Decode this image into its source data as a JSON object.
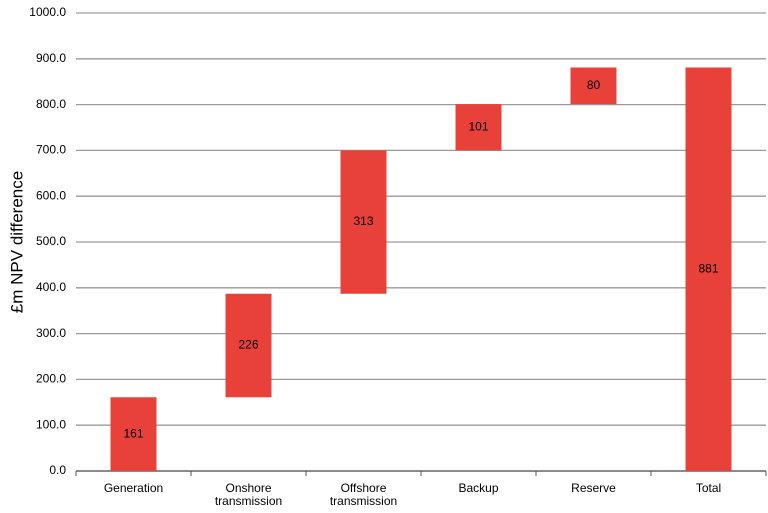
{
  "chart_data": {
    "type": "waterfall",
    "y_label": "£m NPV difference",
    "categories": [
      "Generation",
      "Onshore transmission",
      "Offshore transmission",
      "Backup",
      "Reserve",
      "Total"
    ],
    "values": [
      161,
      226,
      313,
      101,
      80,
      881
    ],
    "color": "#e8413a",
    "ylim": [
      0,
      1000
    ],
    "yticks": [
      {
        "value": 0,
        "label": "0.0"
      },
      {
        "value": 100,
        "label": "100.0"
      },
      {
        "value": 200,
        "label": "200.0"
      },
      {
        "value": 300,
        "label": "300.0"
      },
      {
        "value": 400,
        "label": "400.0"
      },
      {
        "value": 500,
        "label": "500.0"
      },
      {
        "value": 600,
        "label": "600.0"
      },
      {
        "value": 700,
        "label": "700.0"
      },
      {
        "value": 800,
        "label": "800.0"
      },
      {
        "value": 900,
        "label": "900.0"
      },
      {
        "value": 1000,
        "label": "1000.0"
      }
    ],
    "grid": true
  }
}
